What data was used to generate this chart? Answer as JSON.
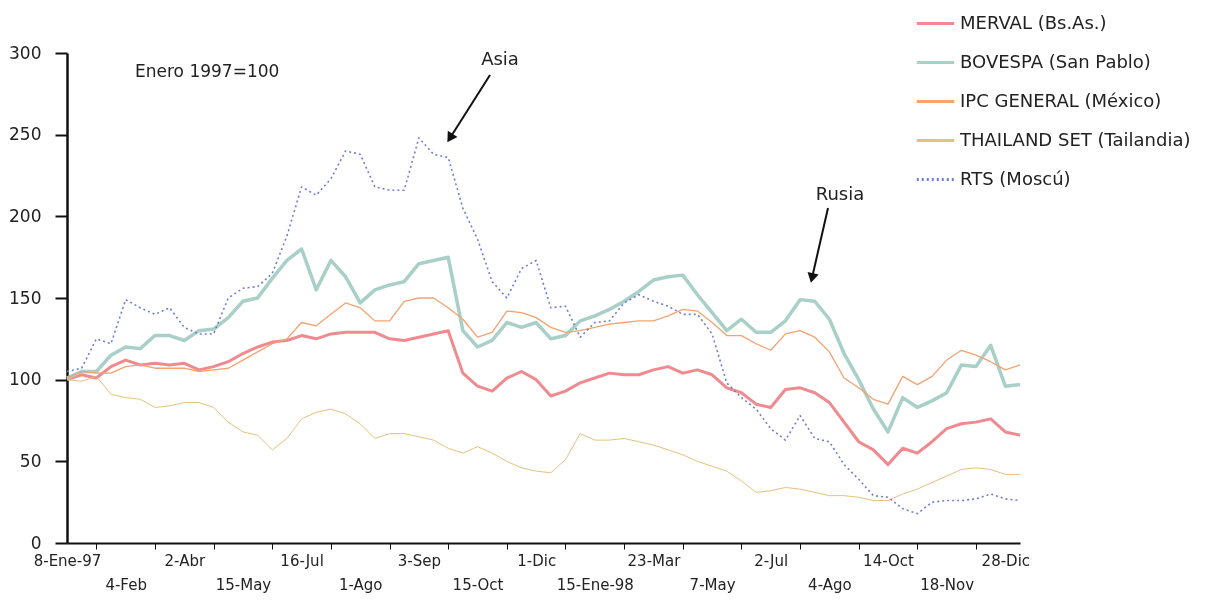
{
  "chart_data": {
    "type": "line",
    "annotations": [
      "Enero 1997=100",
      "Asia",
      "Rusia"
    ],
    "categories": [
      "8-Ene-97",
      null,
      null,
      null,
      "4-Feb",
      null,
      null,
      null,
      "2-Abr",
      null,
      null,
      null,
      "15-May",
      null,
      null,
      null,
      "16-Jul",
      null,
      null,
      null,
      "1-Ago",
      null,
      null,
      null,
      "3-Sep",
      null,
      null,
      null,
      "15-Oct",
      null,
      null,
      null,
      "1-Dic",
      null,
      null,
      null,
      "15-Ene-98",
      null,
      null,
      null,
      "23-Mar",
      null,
      null,
      null,
      "7-May",
      null,
      null,
      null,
      "2-Jul",
      null,
      null,
      null,
      "4-Ago",
      null,
      null,
      null,
      "14-Oct",
      null,
      null,
      null,
      "18-Nov",
      null,
      null,
      null,
      "28-Dic",
      null
    ],
    "ylim": [
      0,
      300
    ],
    "yticks": [
      0,
      50,
      100,
      150,
      200,
      250,
      300
    ],
    "legend": "top right",
    "series": [
      {
        "name": "MERVAL (Bs.As.)",
        "color": "#f08a8f",
        "line_style": "solid",
        "values": [
          100,
          103,
          101,
          108,
          112,
          109,
          110,
          109,
          110,
          106,
          108,
          111,
          116,
          120,
          123,
          124,
          127,
          125,
          128,
          129,
          129,
          129,
          125,
          124,
          126,
          128,
          130,
          104,
          96,
          93,
          101,
          105,
          100,
          90,
          93,
          98,
          101,
          104,
          103,
          103,
          106,
          108,
          104,
          106,
          103,
          95,
          92,
          85,
          83,
          94,
          95,
          92,
          86,
          74,
          62,
          57,
          48,
          58,
          55,
          62,
          70,
          73,
          74,
          76,
          68,
          66
        ]
      },
      {
        "name": "BOVESPA (San Pablo)",
        "color": "#a8cfc8",
        "line_style": "solid",
        "values": [
          101,
          105,
          105,
          115,
          120,
          119,
          127,
          127,
          124,
          130,
          131,
          138,
          148,
          150,
          162,
          173,
          180,
          155,
          173,
          163,
          147,
          155,
          158,
          160,
          171,
          173,
          175,
          130,
          120,
          124,
          135,
          132,
          135,
          125,
          127,
          136,
          139,
          143,
          148,
          154,
          161,
          163,
          164,
          152,
          141,
          130,
          137,
          129,
          129,
          136,
          149,
          148,
          137,
          116,
          100,
          82,
          68,
          89,
          83,
          87,
          92,
          109,
          108,
          121,
          96,
          97
        ]
      },
      {
        "name": "IPC GENERAL (México)",
        "color": "#f5a26f",
        "line_style": "solid",
        "values": [
          101,
          105,
          104,
          104,
          108,
          109,
          107,
          107,
          107,
          105,
          106,
          107,
          112,
          117,
          122,
          125,
          135,
          133,
          140,
          147,
          144,
          136,
          136,
          148,
          150,
          150,
          144,
          137,
          126,
          129,
          142,
          141,
          138,
          132,
          129,
          130,
          132,
          134,
          135,
          136,
          136,
          139,
          143,
          142,
          135,
          127,
          127,
          122,
          118,
          128,
          130,
          126,
          117,
          101,
          95,
          88,
          85,
          102,
          97,
          102,
          112,
          118,
          115,
          111,
          106,
          109
        ]
      },
      {
        "name": "THAILAND SET (Tailandia)",
        "color": "#e8c07e",
        "line_style": "solid",
        "values": [
          100,
          99,
          102,
          91,
          89,
          88,
          83,
          84,
          86,
          86,
          83,
          74,
          68,
          66,
          57,
          64,
          76,
          80,
          82,
          79,
          73,
          64,
          67,
          67,
          65,
          63,
          58,
          55,
          59,
          55,
          50,
          46,
          44,
          43,
          51,
          67,
          63,
          63,
          64,
          62,
          60,
          57,
          54,
          50,
          47,
          44,
          38,
          31,
          32,
          34,
          33,
          31,
          29,
          29,
          28,
          26,
          26,
          30,
          33,
          37,
          41,
          45,
          46,
          45,
          42,
          42
        ]
      },
      {
        "name": "RTS (Moscú)",
        "color": "#6f7fd0",
        "line_style": "dotted",
        "values": [
          105,
          107,
          125,
          122,
          149,
          144,
          140,
          144,
          132,
          128,
          128,
          150,
          156,
          157,
          165,
          188,
          218,
          213,
          223,
          240,
          238,
          218,
          216,
          216,
          248,
          238,
          236,
          205,
          186,
          160,
          150,
          168,
          173,
          144,
          145,
          126,
          135,
          136,
          147,
          152,
          148,
          145,
          140,
          140,
          128,
          98,
          89,
          82,
          70,
          63,
          78,
          64,
          62,
          48,
          39,
          29,
          28,
          21,
          18,
          25,
          26,
          26,
          27,
          30,
          27,
          26
        ]
      }
    ]
  }
}
